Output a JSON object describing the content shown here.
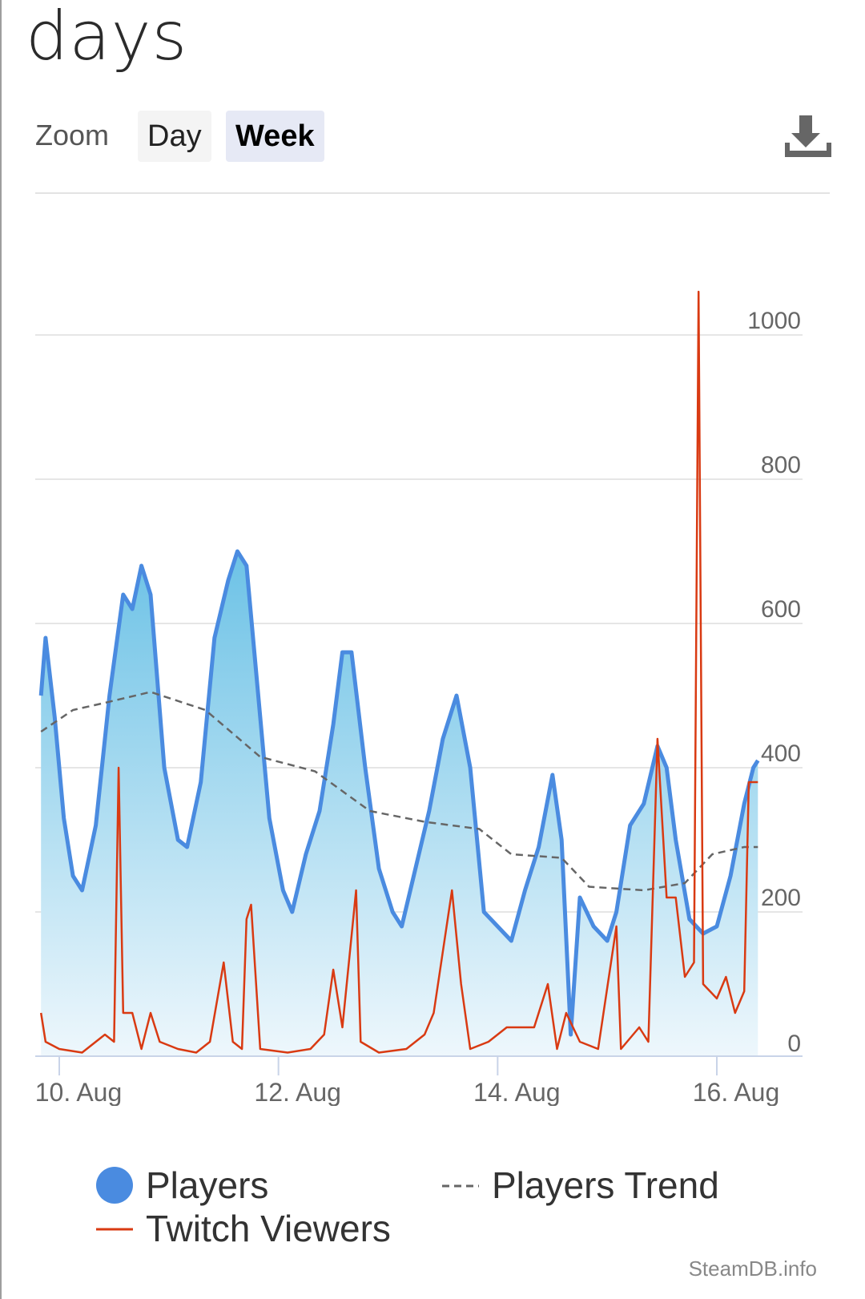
{
  "title": "days",
  "zoom": {
    "label": "Zoom",
    "day_label": "Day",
    "week_label": "Week"
  },
  "download": {
    "icon": "download-icon"
  },
  "legend": {
    "players": "Players",
    "players_trend": "Players Trend",
    "twitch_viewers": "Twitch Viewers"
  },
  "credit": "SteamDB.info",
  "colors": {
    "players_line": "#4a8be0",
    "players_fill_top": "#6fc3e6",
    "twitch": "#d93a12",
    "trend": "#666666",
    "grid": "#e6e6e6"
  },
  "chart_data": {
    "type": "line",
    "x_start": "9. Aug",
    "x_end": "16. Aug",
    "xticks": [
      "10. Aug",
      "12. Aug",
      "14. Aug",
      "16. Aug"
    ],
    "yticks": [
      0,
      200,
      400,
      600,
      800,
      1000
    ],
    "ylim": [
      0,
      1100
    ],
    "grid": true,
    "legend_position": "bottom",
    "series": [
      {
        "name": "Players",
        "style": "area",
        "points": [
          [
            "9. Aug 20:00",
            500
          ],
          [
            "9. Aug 21:00",
            580
          ],
          [
            "9. Aug 23:00",
            470
          ],
          [
            "10. Aug 01:00",
            330
          ],
          [
            "10. Aug 03:00",
            250
          ],
          [
            "10. Aug 05:00",
            230
          ],
          [
            "10. Aug 08:00",
            320
          ],
          [
            "10. Aug 11:00",
            500
          ],
          [
            "10. Aug 14:00",
            640
          ],
          [
            "10. Aug 16:00",
            620
          ],
          [
            "10. Aug 18:00",
            680
          ],
          [
            "10. Aug 20:00",
            640
          ],
          [
            "10. Aug 23:00",
            400
          ],
          [
            "11. Aug 02:00",
            300
          ],
          [
            "11. Aug 04:00",
            290
          ],
          [
            "11. Aug 07:00",
            380
          ],
          [
            "11. Aug 10:00",
            580
          ],
          [
            "11. Aug 13:00",
            660
          ],
          [
            "11. Aug 15:00",
            700
          ],
          [
            "11. Aug 17:00",
            680
          ],
          [
            "11. Aug 19:00",
            540
          ],
          [
            "11. Aug 22:00",
            330
          ],
          [
            "12. Aug 01:00",
            230
          ],
          [
            "12. Aug 03:00",
            200
          ],
          [
            "12. Aug 06:00",
            280
          ],
          [
            "12. Aug 09:00",
            340
          ],
          [
            "12. Aug 12:00",
            460
          ],
          [
            "12. Aug 14:00",
            560
          ],
          [
            "12. Aug 16:00",
            560
          ],
          [
            "12. Aug 19:00",
            400
          ],
          [
            "12. Aug 22:00",
            260
          ],
          [
            "13. Aug 01:00",
            200
          ],
          [
            "13. Aug 03:00",
            180
          ],
          [
            "13. Aug 06:00",
            260
          ],
          [
            "13. Aug 09:00",
            340
          ],
          [
            "13. Aug 12:00",
            440
          ],
          [
            "13. Aug 15:00",
            500
          ],
          [
            "13. Aug 18:00",
            400
          ],
          [
            "13. Aug 21:00",
            200
          ],
          [
            "14. Aug 00:00",
            180
          ],
          [
            "14. Aug 03:00",
            160
          ],
          [
            "14. Aug 06:00",
            230
          ],
          [
            "14. Aug 09:00",
            290
          ],
          [
            "14. Aug 12:00",
            390
          ],
          [
            "14. Aug 14:00",
            300
          ],
          [
            "14. Aug 16:00",
            30
          ],
          [
            "14. Aug 18:00",
            220
          ],
          [
            "14. Aug 21:00",
            180
          ],
          [
            "15. Aug 00:00",
            160
          ],
          [
            "15. Aug 02:00",
            200
          ],
          [
            "15. Aug 05:00",
            320
          ],
          [
            "15. Aug 08:00",
            350
          ],
          [
            "15. Aug 11:00",
            430
          ],
          [
            "15. Aug 13:00",
            400
          ],
          [
            "15. Aug 15:00",
            300
          ],
          [
            "15. Aug 18:00",
            190
          ],
          [
            "15. Aug 21:00",
            170
          ],
          [
            "16. Aug 00:00",
            180
          ],
          [
            "16. Aug 03:00",
            250
          ],
          [
            "16. Aug 06:00",
            350
          ],
          [
            "16. Aug 08:00",
            400
          ],
          [
            "16. Aug 09:00",
            410
          ]
        ]
      },
      {
        "name": "Players Trend",
        "style": "dashed",
        "points": [
          [
            "9. Aug 20:00",
            450
          ],
          [
            "10. Aug 03:00",
            480
          ],
          [
            "10. Aug 10:00",
            490
          ],
          [
            "10. Aug 20:00",
            505
          ],
          [
            "11. Aug 08:00",
            480
          ],
          [
            "11. Aug 20:00",
            415
          ],
          [
            "12. Aug 08:00",
            395
          ],
          [
            "12. Aug 20:00",
            340
          ],
          [
            "13. Aug 08:00",
            325
          ],
          [
            "13. Aug 20:00",
            315
          ],
          [
            "14. Aug 03:00",
            280
          ],
          [
            "14. Aug 14:00",
            275
          ],
          [
            "14. Aug 20:00",
            235
          ],
          [
            "15. Aug 08:00",
            230
          ],
          [
            "15. Aug 17:00",
            240
          ],
          [
            "15. Aug 23:00",
            280
          ],
          [
            "16. Aug 06:00",
            290
          ],
          [
            "16. Aug 09:00",
            290
          ]
        ]
      },
      {
        "name": "Twitch Viewers",
        "style": "line",
        "points": [
          [
            "9. Aug 20:00",
            60
          ],
          [
            "9. Aug 21:00",
            20
          ],
          [
            "10. Aug 00:00",
            10
          ],
          [
            "10. Aug 05:00",
            5
          ],
          [
            "10. Aug 08:00",
            20
          ],
          [
            "10. Aug 10:00",
            30
          ],
          [
            "10. Aug 12:00",
            20
          ],
          [
            "10. Aug 13:00",
            400
          ],
          [
            "10. Aug 14:00",
            60
          ],
          [
            "10. Aug 16:00",
            60
          ],
          [
            "10. Aug 18:00",
            10
          ],
          [
            "10. Aug 20:00",
            60
          ],
          [
            "10. Aug 22:00",
            20
          ],
          [
            "11. Aug 02:00",
            10
          ],
          [
            "11. Aug 06:00",
            5
          ],
          [
            "11. Aug 09:00",
            20
          ],
          [
            "11. Aug 12:00",
            130
          ],
          [
            "11. Aug 14:00",
            20
          ],
          [
            "11. Aug 16:00",
            10
          ],
          [
            "11. Aug 17:00",
            190
          ],
          [
            "11. Aug 18:00",
            210
          ],
          [
            "11. Aug 20:00",
            10
          ],
          [
            "12. Aug 02:00",
            5
          ],
          [
            "12. Aug 07:00",
            10
          ],
          [
            "12. Aug 10:00",
            30
          ],
          [
            "12. Aug 12:00",
            120
          ],
          [
            "12. Aug 14:00",
            40
          ],
          [
            "12. Aug 17:00",
            230
          ],
          [
            "12. Aug 18:00",
            20
          ],
          [
            "12. Aug 22:00",
            5
          ],
          [
            "13. Aug 04:00",
            10
          ],
          [
            "13. Aug 08:00",
            30
          ],
          [
            "13. Aug 10:00",
            60
          ],
          [
            "13. Aug 14:00",
            230
          ],
          [
            "13. Aug 16:00",
            100
          ],
          [
            "13. Aug 18:00",
            10
          ],
          [
            "13. Aug 22:00",
            20
          ],
          [
            "14. Aug 02:00",
            40
          ],
          [
            "14. Aug 04:00",
            40
          ],
          [
            "14. Aug 08:00",
            40
          ],
          [
            "14. Aug 11:00",
            100
          ],
          [
            "14. Aug 13:00",
            10
          ],
          [
            "14. Aug 15:00",
            60
          ],
          [
            "14. Aug 18:00",
            20
          ],
          [
            "14. Aug 22:00",
            10
          ],
          [
            "15. Aug 02:00",
            180
          ],
          [
            "15. Aug 03:00",
            10
          ],
          [
            "15. Aug 07:00",
            40
          ],
          [
            "15. Aug 09:00",
            20
          ],
          [
            "15. Aug 11:00",
            440
          ],
          [
            "15. Aug 13:00",
            220
          ],
          [
            "15. Aug 15:00",
            220
          ],
          [
            "15. Aug 17:00",
            110
          ],
          [
            "15. Aug 19:00",
            130
          ],
          [
            "15. Aug 20:00",
            1060
          ],
          [
            "15. Aug 21:00",
            100
          ],
          [
            "16. Aug 00:00",
            80
          ],
          [
            "16. Aug 02:00",
            110
          ],
          [
            "16. Aug 04:00",
            60
          ],
          [
            "16. Aug 06:00",
            90
          ],
          [
            "16. Aug 07:00",
            380
          ],
          [
            "16. Aug 09:00",
            380
          ]
        ]
      }
    ]
  }
}
